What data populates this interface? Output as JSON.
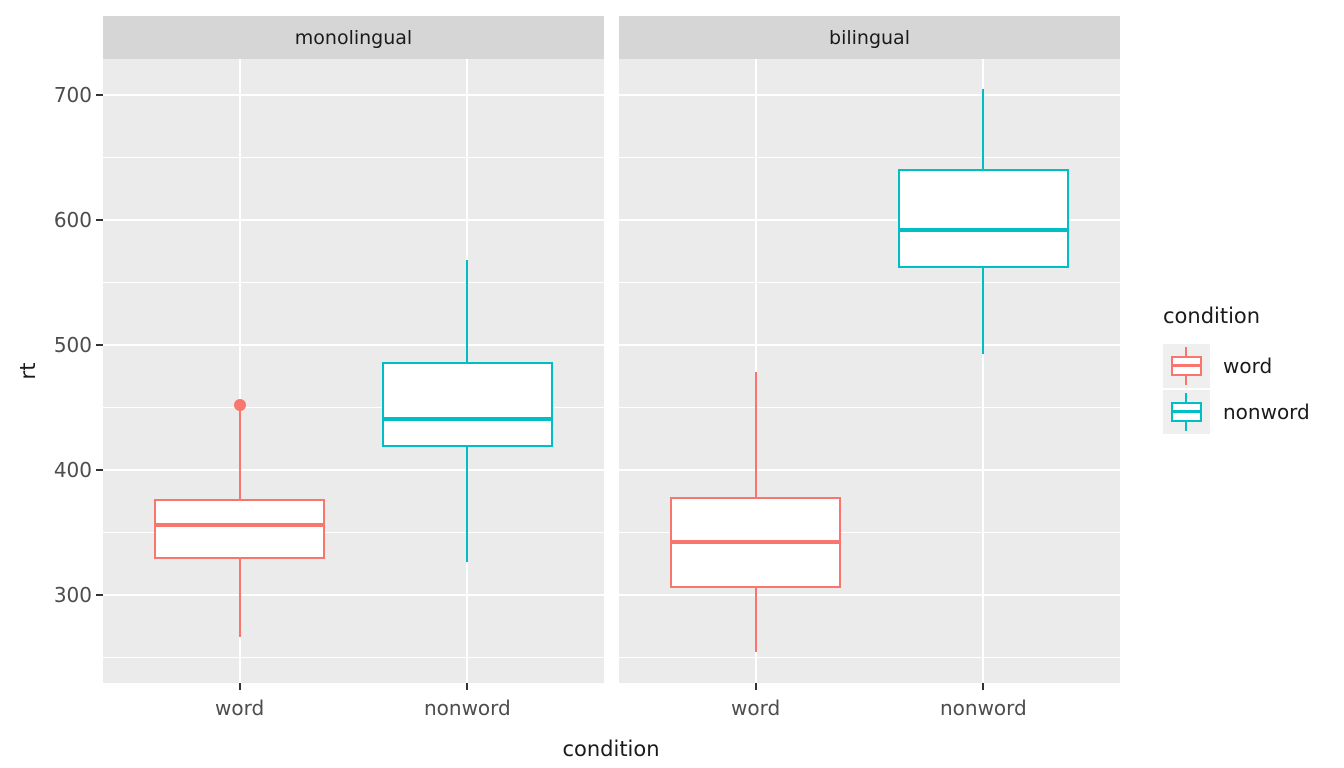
{
  "figure": {
    "background": "#FFFFFF",
    "panel_background": "#EBEBEB",
    "strip_background": "#D6D6D6",
    "grid_color": "#FFFFFF",
    "axis_tick_text_color": "#4D4D4D",
    "title_text_color": "#1A1A1A",
    "tick_mark_color": "#333333"
  },
  "chart_data": {
    "type": "boxplot",
    "title": "",
    "xlabel": "condition",
    "ylabel": "rt",
    "x_categories": [
      "word",
      "nonword"
    ],
    "y_ticks": [
      300,
      400,
      500,
      600,
      700
    ],
    "y_minor_ticks": [
      250,
      350,
      450,
      550,
      650
    ],
    "ylim": [
      230,
      729
    ],
    "grid": true,
    "legend_position": "right",
    "legend": {
      "title": "condition",
      "entries": [
        {
          "label": "word",
          "color": "#F8766D"
        },
        {
          "label": "nonword",
          "color": "#00BFC4"
        }
      ]
    },
    "facets": [
      {
        "label": "monolingual",
        "boxes": [
          {
            "category": "word",
            "condition": "word",
            "color": "#F8766D",
            "whisker_low": 267,
            "q1": 329,
            "median": 356,
            "q3": 377,
            "whisker_high": 449,
            "outliers": [
              452
            ]
          },
          {
            "category": "nonword",
            "condition": "nonword",
            "color": "#00BFC4",
            "whisker_low": 327,
            "q1": 419,
            "median": 441,
            "q3": 487,
            "whisker_high": 568,
            "outliers": []
          }
        ]
      },
      {
        "label": "bilingual",
        "boxes": [
          {
            "category": "word",
            "condition": "word",
            "color": "#F8766D",
            "whisker_low": 255,
            "q1": 306,
            "median": 343,
            "q3": 379,
            "whisker_high": 479,
            "outliers": []
          },
          {
            "category": "nonword",
            "condition": "nonword",
            "color": "#00BFC4",
            "whisker_low": 493,
            "q1": 562,
            "median": 592,
            "q3": 641,
            "whisker_high": 705,
            "outliers": []
          }
        ]
      }
    ]
  }
}
